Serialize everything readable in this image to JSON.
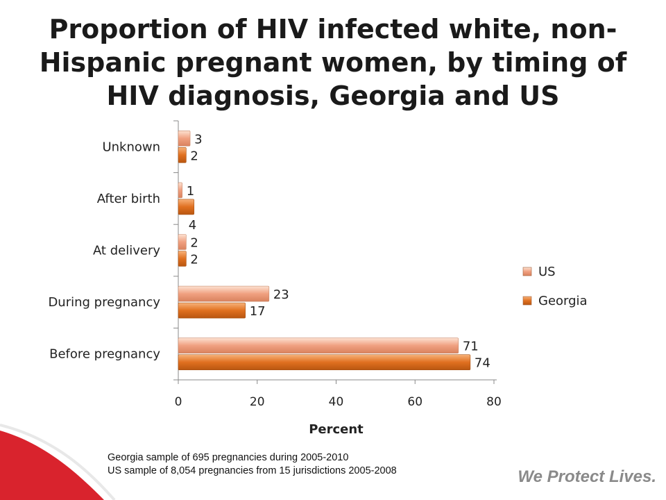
{
  "title": "Proportion of HIV infected white, non-Hispanic pregnant women, by timing of HIV diagnosis, Georgia and US",
  "notes": [
    "Georgia sample of 695 pregnancies during 2005-2010",
    "US sample of 8,054 pregnancies from 15 jurisdictions 2005-2008"
  ],
  "tagline": "We Protect Lives.",
  "chart_data": {
    "type": "bar",
    "orientation": "horizontal",
    "categories": [
      "Unknown",
      "After birth",
      "At delivery",
      "During pregnancy",
      "Before pregnancy"
    ],
    "series": [
      {
        "name": "US",
        "values": [
          3,
          1,
          2,
          23,
          71
        ],
        "color": "#f0a080"
      },
      {
        "name": "Georgia",
        "values": [
          2,
          4,
          2,
          17,
          74
        ],
        "color": "#e07020"
      }
    ],
    "xlabel": "Percent",
    "ylabel": "",
    "xlim": [
      0,
      80
    ],
    "xticks": [
      0,
      20,
      40,
      60,
      80
    ],
    "grid": false,
    "legend": "right",
    "data_labels": true
  },
  "colors": {
    "accent": "#d9232d",
    "us": "#f0a080",
    "georgia": "#e07020"
  }
}
